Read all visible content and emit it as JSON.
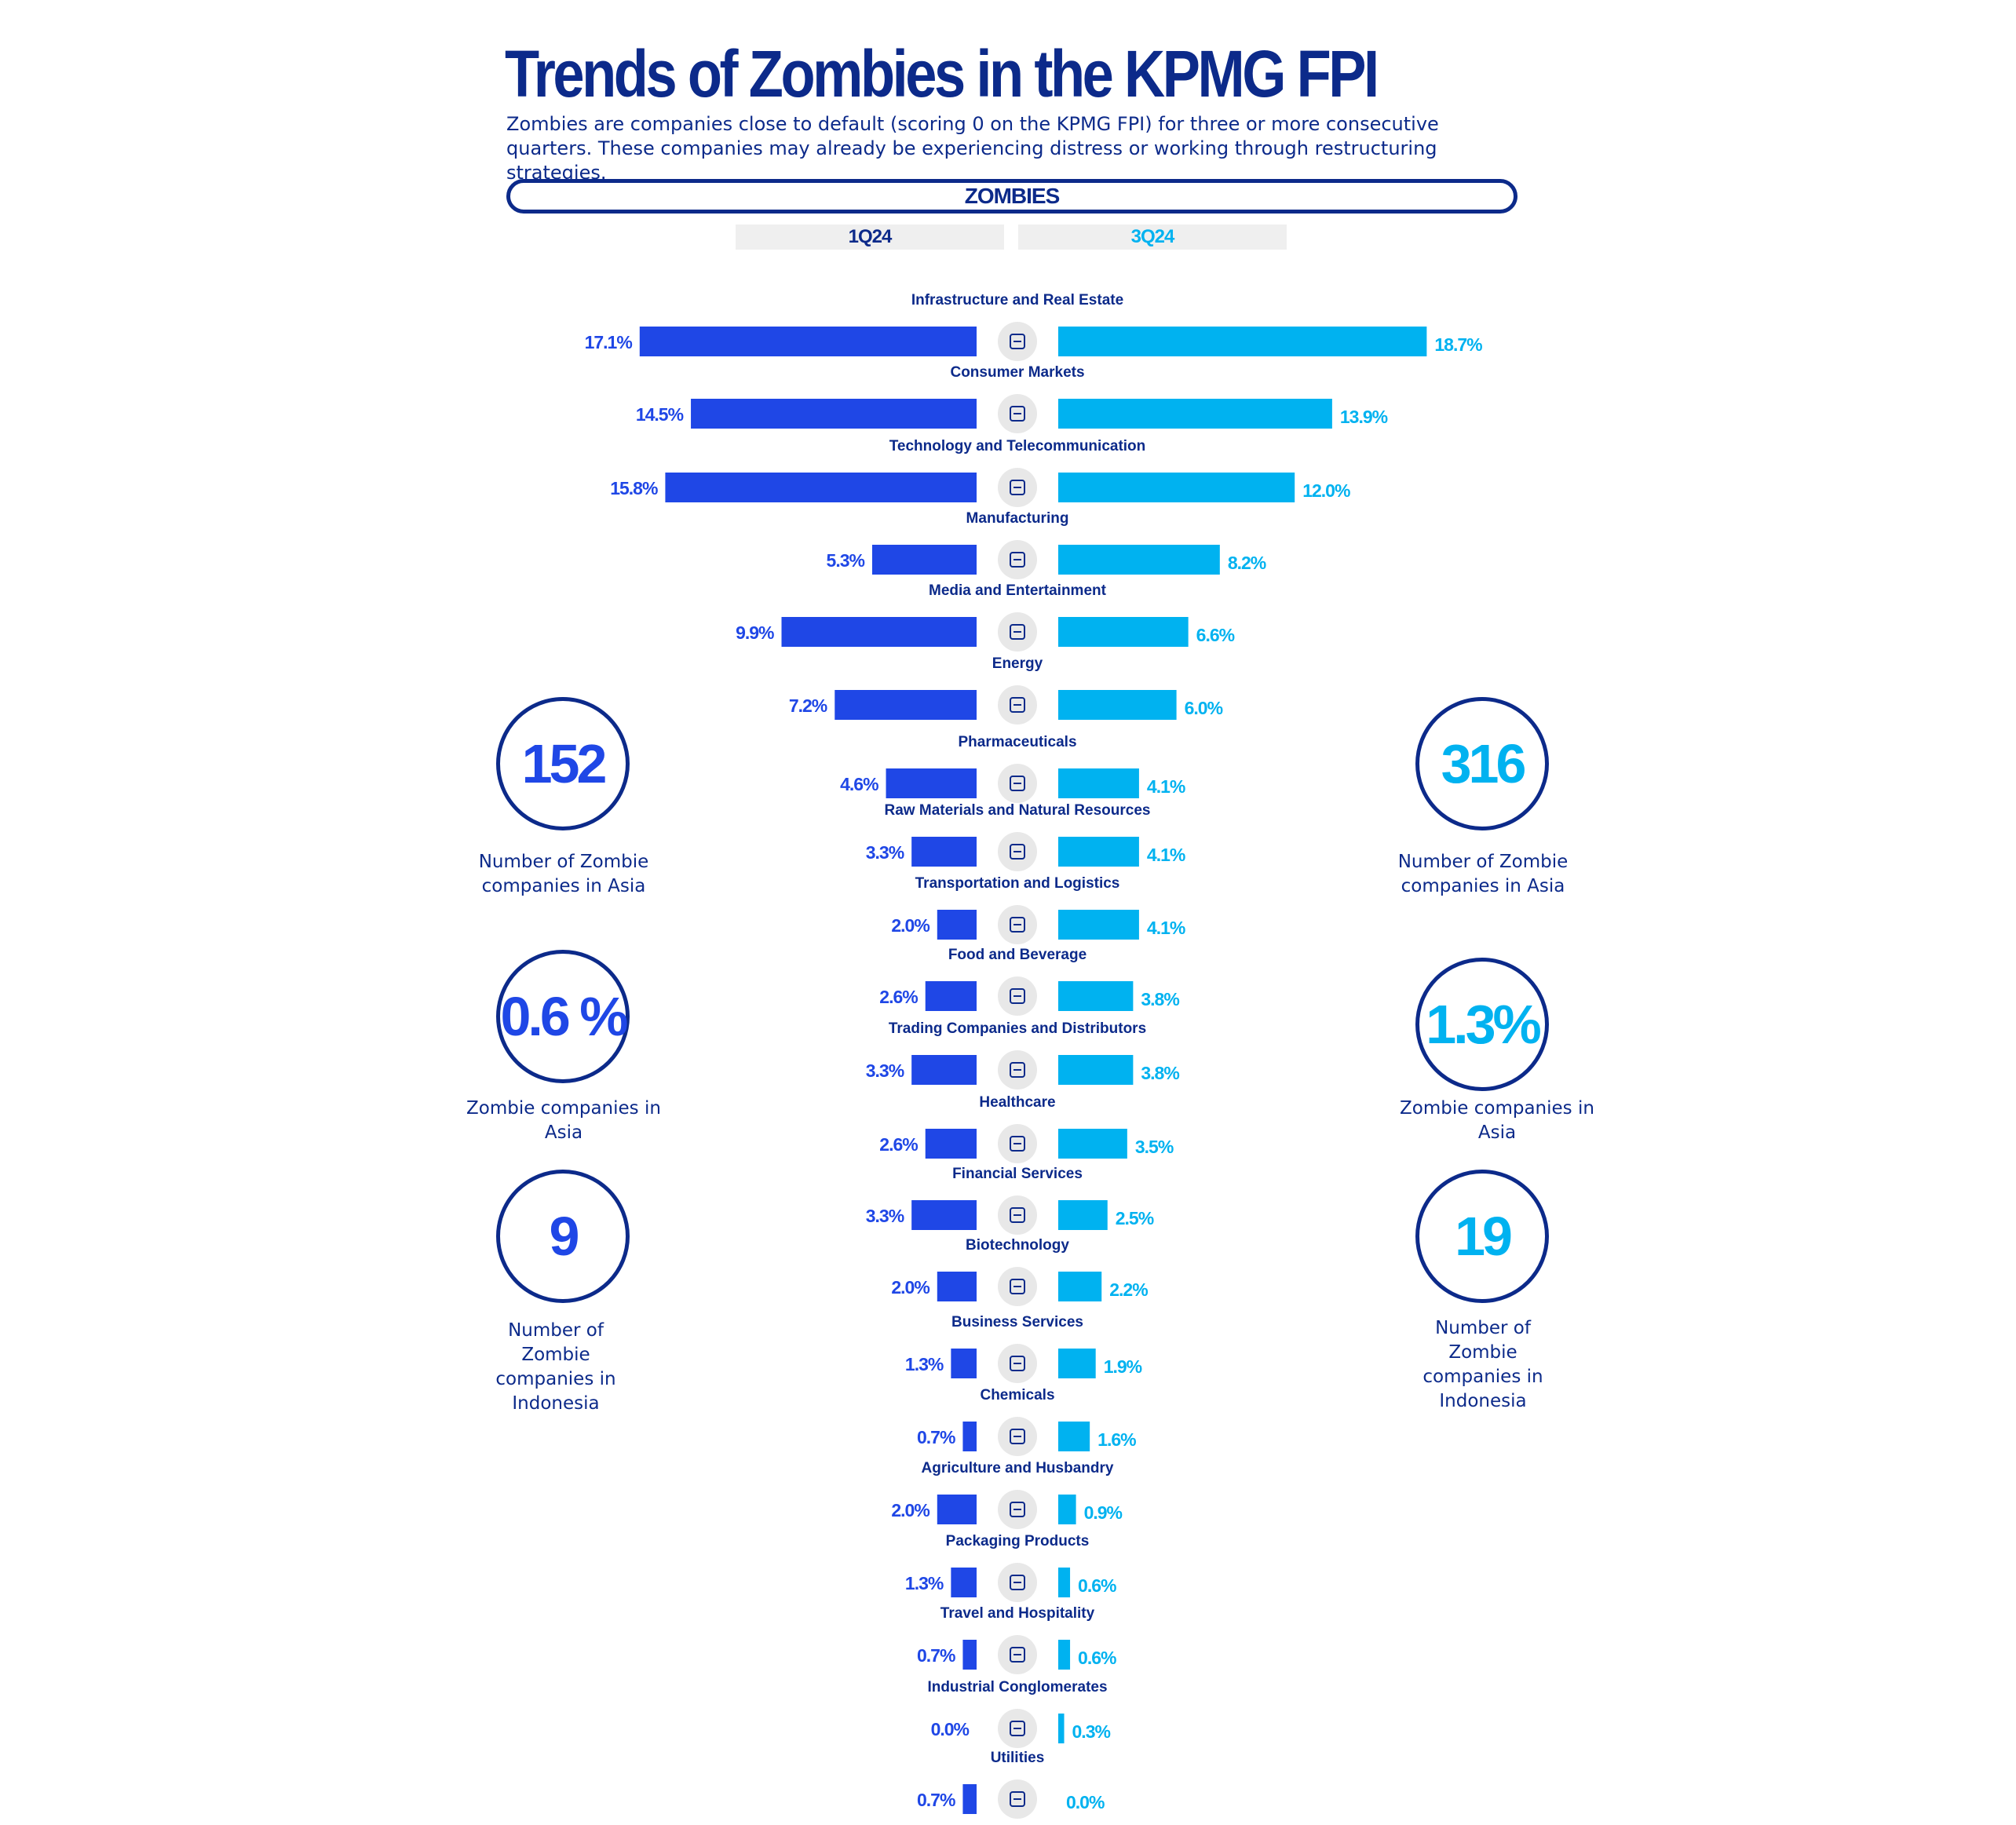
{
  "title": "Trends of Zombies in the KPMG FPI",
  "subtitle": "Zombies are companies close to default (scoring 0 on the KPMG FPI) for three or more consecutive quarters. These companies may already be experiencing distress or working through restructuring strategies.",
  "banner": "ZOMBIES",
  "colors": {
    "q1": "#1f47e6",
    "q3": "#00b2f0",
    "navy": "#0c2a8a",
    "icon_bg": "#e8e8e8"
  },
  "left_stats": [
    {
      "value": "152",
      "label": "Number of Zombie companies in Asia"
    },
    {
      "value": "0.6 %",
      "label": "Zombie companies in Asia"
    },
    {
      "value": "9",
      "label": "Number of Zombie companies in Indonesia"
    }
  ],
  "right_stats": [
    {
      "value": "316",
      "label": "Number of Zombie companies in Asia"
    },
    {
      "value": "1.3%",
      "label": "Zombie companies in Asia"
    },
    {
      "value": "19",
      "label": "Number of Zombie companies in Indonesia"
    }
  ],
  "chart_data": {
    "type": "bar",
    "orientation": "horizontal-butterfly",
    "title": "Trends of Zombies in the KPMG FPI",
    "series": [
      {
        "name": "1Q24",
        "values": [
          17.1,
          14.5,
          15.8,
          5.3,
          9.9,
          7.2,
          4.6,
          3.3,
          2.0,
          2.6,
          3.3,
          2.6,
          3.3,
          2.0,
          1.3,
          0.7,
          2.0,
          1.3,
          0.7,
          0.0,
          0.7
        ],
        "labels": [
          "17.1%",
          "14.5%",
          "15.8%",
          "5.3%",
          "9.9%",
          "7.2%",
          "4.6%",
          "3.3%",
          "2.0%",
          "2.6%",
          "3.3%",
          "2.6%",
          "3.3%",
          "2.0%",
          "1.3%",
          "0.7%",
          "2.0%",
          "1.3%",
          "0.7%",
          "0.0%",
          "0.7%"
        ]
      },
      {
        "name": "3Q24",
        "values": [
          18.7,
          13.9,
          12.0,
          8.2,
          6.6,
          6.0,
          4.1,
          4.1,
          4.1,
          3.8,
          3.8,
          3.5,
          2.5,
          2.2,
          1.9,
          1.6,
          0.9,
          0.6,
          0.6,
          0.3,
          0.0
        ],
        "labels": [
          "18.7%",
          "13.9%",
          "12.0%",
          "8.2%",
          "6.6%",
          "6.0%",
          "4.1%",
          "4.1%",
          "4.1%",
          "3.8%",
          "3.8%",
          "3.5%",
          "2.5%",
          "2.2%",
          "1.9%",
          "1.6%",
          "0.9%",
          "0.6%",
          "0.6%",
          "0.3%",
          "0.0%"
        ]
      }
    ],
    "categories": [
      "Infrastructure and Real Estate",
      "Consumer Markets",
      "Technology and Telecommunication",
      "Manufacturing",
      "Media and Entertainment",
      "Energy",
      "Pharmaceuticals",
      "Raw Materials and Natural Resources",
      "Transportation and Logistics",
      "Food and Beverage",
      "Trading Companies and Distributors",
      "Healthcare",
      "Financial Services",
      "Biotechnology",
      "Business Services",
      "Chemicals",
      "Agriculture and Husbandry",
      "Packaging Products",
      "Travel and Hospitality",
      "Industrial Conglomerates",
      "Utilities"
    ],
    "icons": [
      "building-icon",
      "person-icon",
      "network-icon",
      "factory-icon",
      "presentation-icon",
      "lightning-icon",
      "pill-bottle-icon",
      "sprout-icon",
      "truck-icon",
      "plate-cutlery-icon",
      "trend-chart-icon",
      "medical-cross-icon",
      "money-bag-icon",
      "hand-leaf-icon",
      "person-seated-icon",
      "flask-icon",
      "wheat-icon",
      "box-icon",
      "globe-plane-icon",
      "office-building-icon",
      "tools-icon"
    ],
    "xlim": [
      0,
      20
    ],
    "legend": [
      "1Q24",
      "3Q24"
    ]
  }
}
